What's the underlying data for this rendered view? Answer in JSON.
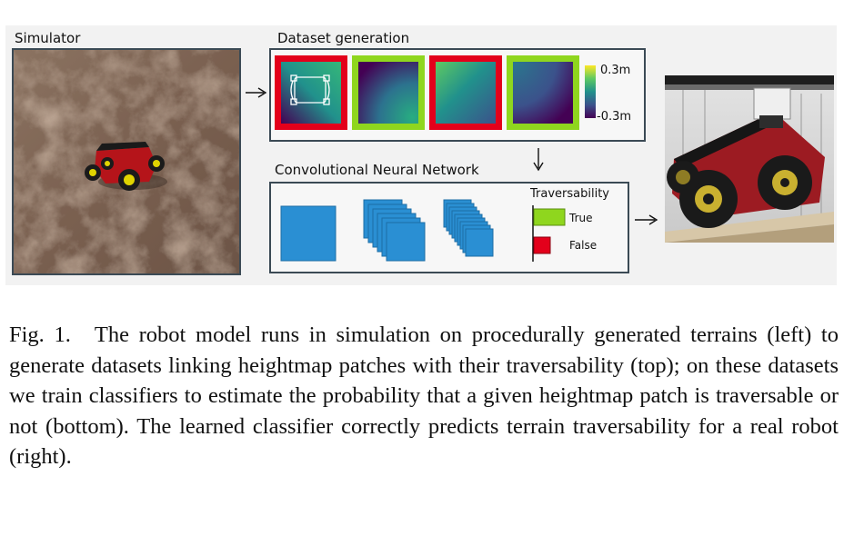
{
  "figure": {
    "panels": {
      "simulator": "Simulator",
      "dataset": "Dataset generation",
      "cnn": "Convolutional Neural Network"
    },
    "colorbar": {
      "max_label": "0.3m",
      "min_label": "-0.3m"
    },
    "traversability": {
      "title": "Traversability",
      "true_label": "True",
      "false_label": "False"
    },
    "colors": {
      "untraversable": "#e3001b",
      "traversable": "#8fd61e",
      "layer": "#2a8fd3"
    }
  },
  "caption": {
    "number": "Fig. 1.",
    "text": "The robot model runs in simulation on procedurally generated terrains (left) to generate datasets linking heightmap patches with their traversability (top); on these datasets we train classifiers to estimate the probability that a given heightmap patch is traversable or not (bottom). The learned classifier correctly predicts terrain traversability for a real robot (right)."
  }
}
